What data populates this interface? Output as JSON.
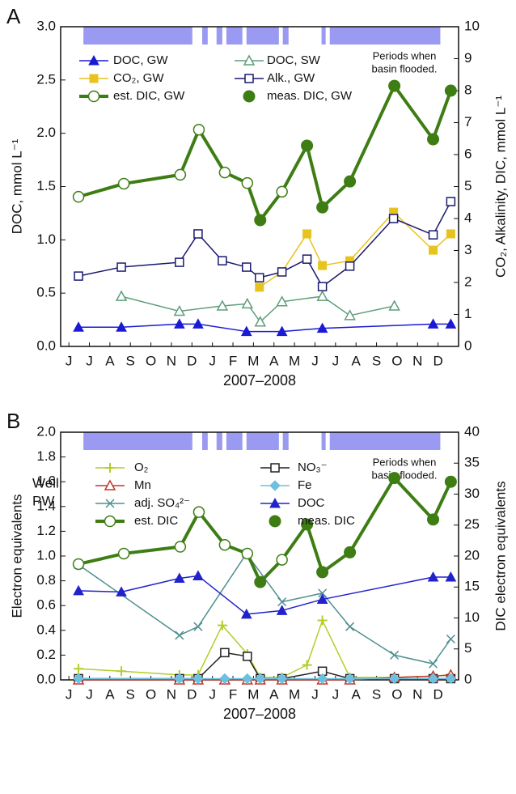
{
  "chart_data": [
    {
      "type": "line",
      "panel": "A",
      "xlabel": "2007–2008",
      "ylabel": "DOC, mmol L⁻¹",
      "y2label": "CO₂, Alkalinity, DIC, mmol L⁻¹",
      "annotation": [
        "Periods when",
        "basin flooded."
      ],
      "xlim": [
        -0.4,
        19.0
      ],
      "xticks": [
        {
          "value": 0,
          "label": "J"
        },
        {
          "value": 1,
          "label": "J"
        },
        {
          "value": 2,
          "label": "A"
        },
        {
          "value": 3,
          "label": "S"
        },
        {
          "value": 4,
          "label": "O"
        },
        {
          "value": 5,
          "label": "N"
        },
        {
          "value": 6,
          "label": "D"
        },
        {
          "value": 7,
          "label": "J"
        },
        {
          "value": 8,
          "label": "F"
        },
        {
          "value": 9,
          "label": "M"
        },
        {
          "value": 10,
          "label": "A"
        },
        {
          "value": 11,
          "label": "M"
        },
        {
          "value": 12,
          "label": "J"
        },
        {
          "value": 13,
          "label": "J"
        },
        {
          "value": 14,
          "label": "A"
        },
        {
          "value": 15,
          "label": "S"
        },
        {
          "value": 16,
          "label": "O"
        },
        {
          "value": 17,
          "label": "N"
        },
        {
          "value": 18,
          "label": "D"
        }
      ],
      "ylim": [
        0,
        3
      ],
      "yticks": [
        {
          "value": 0,
          "label": "0.0"
        },
        {
          "value": 0.5,
          "label": "0.5"
        },
        {
          "value": 1,
          "label": "1.0"
        },
        {
          "value": 1.5,
          "label": "1.5"
        },
        {
          "value": 2,
          "label": "2.0"
        },
        {
          "value": 2.5,
          "label": "2.5"
        },
        {
          "value": 3,
          "label": "3.0"
        }
      ],
      "y2lim": [
        0,
        10
      ],
      "y2ticks": [
        0,
        1,
        2,
        3,
        4,
        5,
        6,
        7,
        8,
        9,
        10
      ],
      "flood_color": "#9a9af2",
      "flood_periods": [
        [
          0.71,
          6.02
        ],
        [
          6.5,
          6.77
        ],
        [
          7.2,
          7.48
        ],
        [
          7.68,
          8.46
        ],
        [
          8.66,
          10.24
        ],
        [
          10.43,
          10.71
        ],
        [
          12.32,
          12.52
        ],
        [
          12.72,
          18.11
        ]
      ],
      "series": [
        {
          "name": "DOC, GW",
          "color": "#1a1ad6",
          "marker": "triangle",
          "line_width": 1.5,
          "axis": "y",
          "x": [
            0.47,
            2.56,
            5.39,
            6.3,
            8.66,
            10.39,
            12.36,
            17.76,
            18.62
          ],
          "values": [
            0.18,
            0.18,
            0.21,
            0.21,
            0.14,
            0.14,
            0.17,
            0.21,
            0.21
          ]
        },
        {
          "name": "DOC, SW",
          "color": "#5f9e7a",
          "marker": "open-triangle",
          "line_width": 1.5,
          "axis": "y",
          "x": [
            2.56,
            5.39,
            7.48,
            8.7,
            9.33,
            10.39,
            12.36,
            13.7,
            15.87
          ],
          "values": [
            0.47,
            0.33,
            0.38,
            0.4,
            0.23,
            0.42,
            0.47,
            0.29,
            0.38
          ]
        },
        {
          "name": "CO₂, GW",
          "color": "#e8c31e",
          "marker": "square",
          "line_width": 1.5,
          "axis": "y2",
          "x": [
            9.29,
            10.39,
            11.61,
            12.36,
            13.7,
            15.83,
            17.76,
            18.62
          ],
          "values": [
            1.85,
            2.33,
            3.52,
            2.53,
            2.68,
            4.2,
            3.01,
            3.52
          ]
        },
        {
          "name": "Alk., GW",
          "color": "#1a1a6e",
          "marker": "open-square",
          "line_width": 1.5,
          "axis": "y2",
          "x": [
            0.47,
            2.56,
            5.39,
            6.3,
            7.48,
            8.66,
            9.29,
            10.39,
            11.61,
            12.36,
            13.7,
            15.83,
            17.76,
            18.62
          ],
          "values": [
            2.2,
            2.48,
            2.63,
            3.52,
            2.68,
            2.48,
            2.15,
            2.33,
            2.73,
            1.87,
            2.51,
            4.0,
            3.49,
            4.53
          ]
        },
        {
          "name": "est. DIC, GW",
          "color": "#3e7d14",
          "marker": "open-circle",
          "line_width": 4,
          "axis": "y2",
          "x": [
            0.47,
            2.68,
            5.43,
            6.34,
            7.6,
            8.7,
            9.33,
            10.39,
            11.61,
            12.36,
            13.7,
            15.87,
            17.76,
            18.62
          ],
          "values": [
            4.68,
            5.09,
            5.37,
            6.78,
            5.44,
            5.11,
            3.95,
            4.84,
            6.28,
            4.35,
            5.16,
            8.15,
            6.48,
            8.0
          ]
        },
        {
          "name": "meas. DIC, GW",
          "color": "#3e7d14",
          "marker": "circle",
          "line": false,
          "axis": "y2",
          "x": [
            9.33,
            11.61,
            12.36,
            13.7,
            15.87,
            17.76,
            18.62
          ],
          "values": [
            3.95,
            6.28,
            4.35,
            5.16,
            8.15,
            6.48,
            8.0
          ]
        }
      ]
    },
    {
      "type": "line",
      "panel": "B",
      "xlabel": "2007–2008",
      "ylabel": "Electron equivalents",
      "y2label": "DIC electron equivalents",
      "annotation": [
        "Periods when",
        "basin flooded."
      ],
      "legend_title": [
        "Well",
        "PW"
      ],
      "xlim": [
        -0.4,
        19.0
      ],
      "xticks": [
        {
          "value": 0,
          "label": "J"
        },
        {
          "value": 1,
          "label": "J"
        },
        {
          "value": 2,
          "label": "A"
        },
        {
          "value": 3,
          "label": "S"
        },
        {
          "value": 4,
          "label": "O"
        },
        {
          "value": 5,
          "label": "N"
        },
        {
          "value": 6,
          "label": "D"
        },
        {
          "value": 7,
          "label": "J"
        },
        {
          "value": 8,
          "label": "F"
        },
        {
          "value": 9,
          "label": "M"
        },
        {
          "value": 10,
          "label": "A"
        },
        {
          "value": 11,
          "label": "M"
        },
        {
          "value": 12,
          "label": "J"
        },
        {
          "value": 13,
          "label": "J"
        },
        {
          "value": 14,
          "label": "A"
        },
        {
          "value": 15,
          "label": "S"
        },
        {
          "value": 16,
          "label": "O"
        },
        {
          "value": 17,
          "label": "N"
        },
        {
          "value": 18,
          "label": "D"
        }
      ],
      "ylim": [
        0,
        2
      ],
      "yticks": [
        {
          "value": 0,
          "label": "0.0"
        },
        {
          "value": 0.2,
          "label": "0.2"
        },
        {
          "value": 0.4,
          "label": "0.4"
        },
        {
          "value": 0.6,
          "label": "0.6"
        },
        {
          "value": 0.8,
          "label": "0.8"
        },
        {
          "value": 1,
          "label": "1.0"
        },
        {
          "value": 1.2,
          "label": "1.2"
        },
        {
          "value": 1.4,
          "label": "1.4"
        },
        {
          "value": 1.6,
          "label": "1.6"
        },
        {
          "value": 1.8,
          "label": "1.8"
        },
        {
          "value": 2,
          "label": "2.0"
        }
      ],
      "y2lim": [
        0,
        40
      ],
      "y2ticks": [
        0,
        5,
        10,
        15,
        20,
        25,
        30,
        35,
        40
      ],
      "flood_color": "#9a9af2",
      "flood_periods": [
        [
          0.71,
          6.02
        ],
        [
          6.5,
          6.77
        ],
        [
          7.2,
          7.48
        ],
        [
          7.68,
          8.46
        ],
        [
          8.66,
          10.24
        ],
        [
          10.43,
          10.71
        ],
        [
          12.32,
          12.52
        ],
        [
          12.72,
          18.11
        ]
      ],
      "series": [
        {
          "name": "O₂",
          "color": "#b5cc2a",
          "marker": "plus",
          "line_width": 1.5,
          "axis": "y",
          "x": [
            0.47,
            2.56,
            5.39,
            6.3,
            7.48,
            8.7,
            9.33,
            10.39,
            11.61,
            12.36,
            13.7,
            15.87,
            17.76,
            18.62
          ],
          "values": [
            0.09,
            0.07,
            0.04,
            0.04,
            0.44,
            0.21,
            0.02,
            0.02,
            0.12,
            0.48,
            0.02,
            0.02,
            0.03,
            0.04
          ]
        },
        {
          "name": "NO₃⁻",
          "color": "#222222",
          "marker": "open-square",
          "line_width": 1.5,
          "axis": "y",
          "x": [
            0.47,
            5.39,
            6.3,
            7.6,
            8.7,
            9.33,
            10.39,
            12.36,
            13.7,
            15.87,
            17.76,
            18.62
          ],
          "values": [
            0.01,
            0.01,
            0.01,
            0.22,
            0.19,
            0.01,
            0.01,
            0.07,
            0.01,
            0.01,
            0.01,
            0.01
          ]
        },
        {
          "name": "Mn",
          "color": "#c0392b",
          "marker": "open-triangle",
          "line_width": 1.5,
          "axis": "y",
          "x": [
            0.47,
            5.39,
            6.3,
            7.6,
            8.7,
            9.33,
            10.39,
            12.36,
            13.7,
            15.87,
            17.76,
            18.62
          ],
          "values": [
            0,
            0,
            0,
            0,
            0,
            0,
            0,
            0,
            0,
            0.02,
            0.03,
            0.04
          ]
        },
        {
          "name": "Fe",
          "color": "#6ec0e0",
          "marker": "diamond",
          "line_width": 1.5,
          "axis": "y",
          "x": [
            0.47,
            5.39,
            6.3,
            7.6,
            8.7,
            9.33,
            10.39,
            12.36,
            13.7,
            15.87,
            17.76,
            18.62
          ],
          "values": [
            0.01,
            0.01,
            0.01,
            0.01,
            0.01,
            0.01,
            0.01,
            0.01,
            0.01,
            0.01,
            0.01,
            0.01
          ]
        },
        {
          "name": "adj. SO₄²⁻",
          "color": "#4f8f8f",
          "marker": "x",
          "line_width": 1.5,
          "axis": "y",
          "x": [
            0.47,
            5.39,
            6.3,
            8.66,
            10.39,
            12.36,
            13.7,
            15.87,
            17.76,
            18.62
          ],
          "values": [
            0.93,
            0.36,
            0.43,
            1.02,
            0.63,
            0.7,
            0.43,
            0.2,
            0.13,
            0.33
          ]
        },
        {
          "name": "DOC",
          "color": "#2222cc",
          "marker": "triangle",
          "line_width": 1.5,
          "axis": "y",
          "x": [
            0.47,
            2.56,
            5.39,
            6.3,
            8.66,
            10.39,
            12.36,
            17.76,
            18.62
          ],
          "values": [
            0.72,
            0.71,
            0.82,
            0.84,
            0.53,
            0.56,
            0.65,
            0.83,
            0.83
          ]
        },
        {
          "name": "est. DIC",
          "color": "#3e7d14",
          "marker": "open-circle",
          "line_width": 4,
          "axis": "y2",
          "x": [
            0.47,
            2.68,
            5.43,
            6.34,
            7.6,
            8.7,
            9.33,
            10.39,
            11.61,
            12.36,
            13.7,
            15.87,
            17.76,
            18.62
          ],
          "values": [
            18.7,
            20.4,
            21.5,
            27.1,
            21.8,
            20.4,
            15.8,
            19.4,
            25.1,
            17.4,
            20.6,
            32.6,
            25.9,
            32.0
          ]
        },
        {
          "name": "meas. DIC",
          "color": "#3e7d14",
          "marker": "circle",
          "line": false,
          "axis": "y2",
          "x": [
            9.33,
            11.61,
            12.36,
            13.7,
            15.87,
            17.76,
            18.62
          ],
          "values": [
            15.8,
            25.1,
            17.4,
            20.6,
            32.6,
            25.9,
            32.0
          ]
        }
      ]
    }
  ]
}
